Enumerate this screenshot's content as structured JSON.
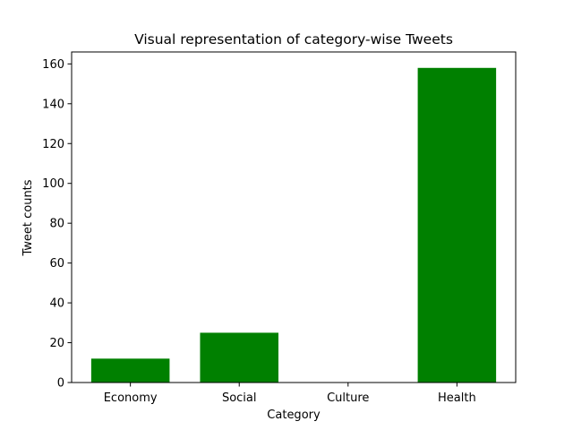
{
  "chart_data": {
    "type": "bar",
    "title": "Visual representation of category-wise Tweets",
    "xlabel": "Category",
    "ylabel": "Tweet counts",
    "categories": [
      "Economy",
      "Social",
      "Culture",
      "Health"
    ],
    "values": [
      12,
      25,
      0,
      158
    ],
    "ylim": [
      0,
      166
    ],
    "yticks": [
      0,
      20,
      40,
      60,
      80,
      100,
      120,
      140,
      160
    ],
    "bar_color": "#008000",
    "grid": false,
    "legend": "none"
  }
}
